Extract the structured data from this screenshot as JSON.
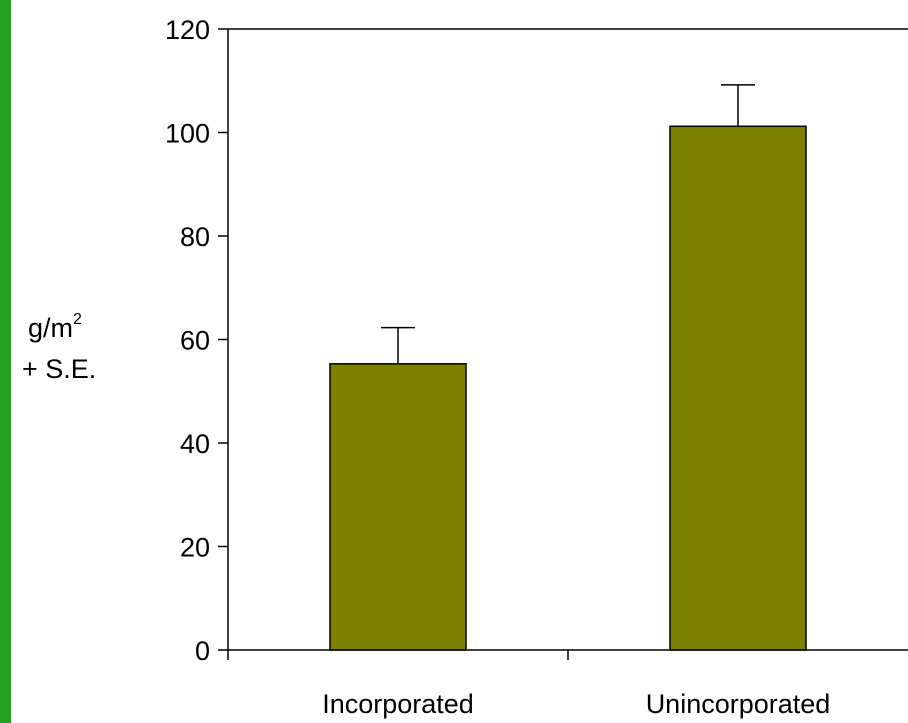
{
  "chart_data": {
    "type": "bar",
    "title": "",
    "xlabel": "",
    "ylabel": "g/m2 + S.E.",
    "ylabel_lines": {
      "line1_base": "g/m",
      "line1_sup": "2",
      "line2": "+ S.E."
    },
    "categories": [
      "Incorporated",
      "Unincorporated"
    ],
    "values": [
      55.3,
      101.2
    ],
    "error_bars_upper": [
      7.0,
      8.0
    ],
    "ylim": [
      0,
      120
    ],
    "yticks": [
      0,
      20,
      40,
      60,
      80,
      100,
      120
    ],
    "grid": false,
    "legend": "none"
  },
  "colors": {
    "bar_fill": "#808000",
    "bar_stroke": "#000000",
    "axis": "#000000",
    "left_strip": "#22a022",
    "background": "#ffffff"
  }
}
